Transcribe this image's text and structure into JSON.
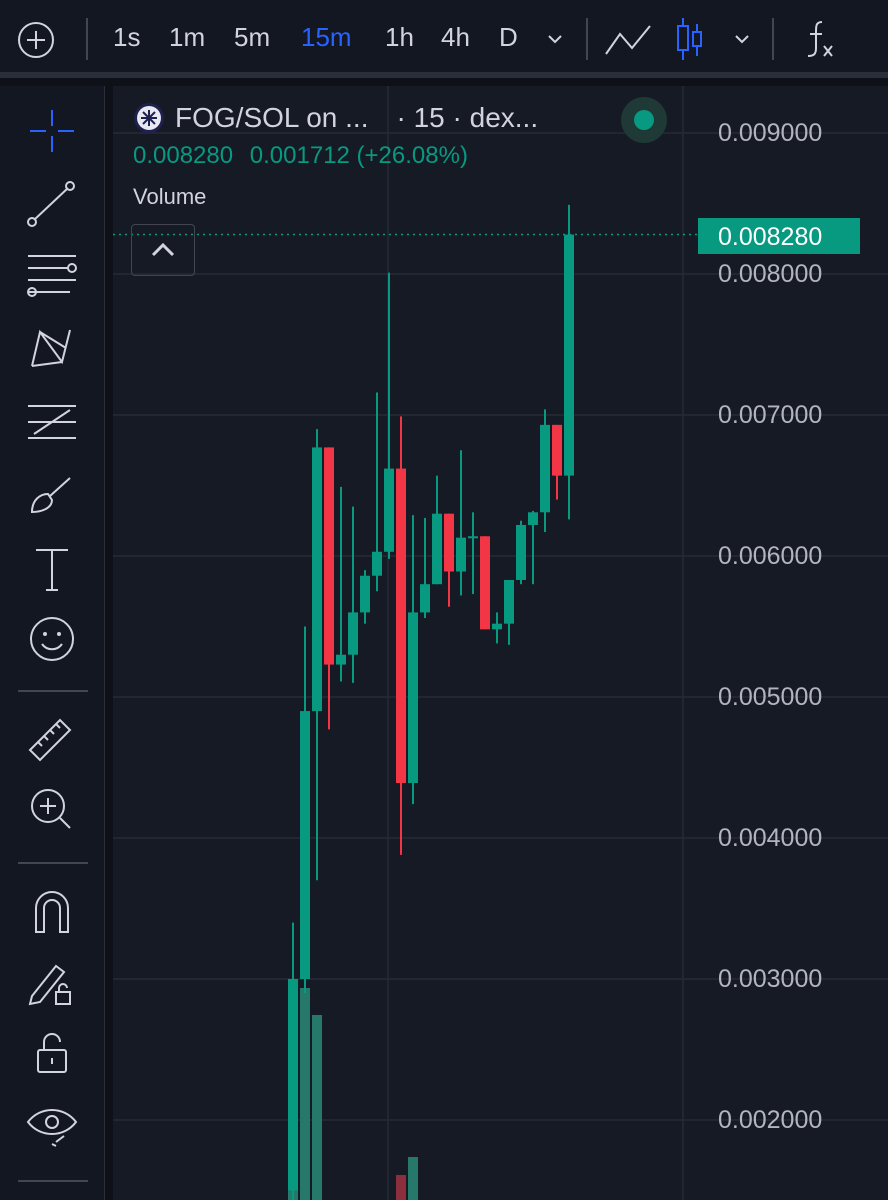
{
  "toolbar": {
    "timeframes": [
      "1s",
      "1m",
      "5m",
      "15m",
      "1h",
      "4h",
      "D"
    ],
    "active_timeframe": "15m",
    "icons": [
      "plus-circle-icon",
      "chevron-down-icon",
      "line-chart-icon",
      "candles-icon",
      "chevron-down-icon",
      "function-icon"
    ]
  },
  "sidebar": {
    "tools": [
      "crosshair-icon",
      "trend-line-icon",
      "horizontal-lines-icon",
      "pattern-icon",
      "fib-icon",
      "brush-icon",
      "text-icon",
      "emoji-icon",
      "ruler-icon",
      "zoom-in-icon",
      "magnet-icon",
      "pencil-lock-icon",
      "lock-icon",
      "eye-icon"
    ]
  },
  "legend": {
    "symbol": "FOG/SOL on ...",
    "interval": "· 15 · dex...",
    "last": "0.008280",
    "change": "0.001712 (+26.08%)",
    "volume_label": "Volume"
  },
  "colors": {
    "up": "#089981",
    "down": "#f23645",
    "accent": "#2962ff",
    "background": "#161a25"
  },
  "chart_data": {
    "type": "candlestick",
    "price_axis": {
      "ticks": [
        "0.009000",
        "0.008000",
        "0.007000",
        "0.006000",
        "0.005000",
        "0.004000",
        "0.003000",
        "0.002000"
      ],
      "range": [
        0.00141,
        0.00925
      ]
    },
    "last_price_label": "0.008280",
    "candles": [
      [
        0.0015,
        0.0034,
        0.0014,
        0.003
      ],
      [
        0.003,
        0.0055,
        0.0029,
        0.0049
      ],
      [
        0.0049,
        0.0069,
        0.0037,
        0.00677
      ],
      [
        0.00677,
        0.00677,
        0.00477,
        0.00523
      ],
      [
        0.00523,
        0.00649,
        0.00511,
        0.0053
      ],
      [
        0.0053,
        0.00635,
        0.0051,
        0.0056
      ],
      [
        0.0056,
        0.0059,
        0.00552,
        0.00586
      ],
      [
        0.00586,
        0.00716,
        0.00575,
        0.00603
      ],
      [
        0.00603,
        0.00801,
        0.00598,
        0.00662
      ],
      [
        0.00662,
        0.00699,
        0.00388,
        0.00439
      ],
      [
        0.00439,
        0.00629,
        0.00424,
        0.0056
      ],
      [
        0.0056,
        0.00627,
        0.00556,
        0.0058
      ],
      [
        0.0058,
        0.00657,
        0.0058,
        0.0063
      ],
      [
        0.0063,
        0.0063,
        0.00564,
        0.00589
      ],
      [
        0.00589,
        0.00675,
        0.00572,
        0.00613
      ],
      [
        0.00613,
        0.00631,
        0.00573,
        0.00614
      ],
      [
        0.00614,
        0.00614,
        0.00548,
        0.00548
      ],
      [
        0.00548,
        0.0056,
        0.00538,
        0.00552
      ],
      [
        0.00552,
        0.00583,
        0.00537,
        0.00583
      ],
      [
        0.00583,
        0.00625,
        0.0058,
        0.00622
      ],
      [
        0.00622,
        0.00632,
        0.0058,
        0.00631
      ],
      [
        0.00631,
        0.00704,
        0.00617,
        0.00693
      ],
      [
        0.00693,
        0.00693,
        0.0064,
        0.00657
      ],
      [
        0.00657,
        0.00849,
        0.00626,
        0.00828
      ]
    ],
    "candle_fields": [
      "open",
      "high",
      "low",
      "close"
    ],
    "volume_relative": [
      210,
      212,
      185,
      0,
      0,
      0,
      0,
      0,
      0,
      25,
      43,
      0,
      0,
      0,
      0,
      0,
      0,
      0,
      0,
      0,
      0,
      0,
      0,
      0
    ]
  }
}
